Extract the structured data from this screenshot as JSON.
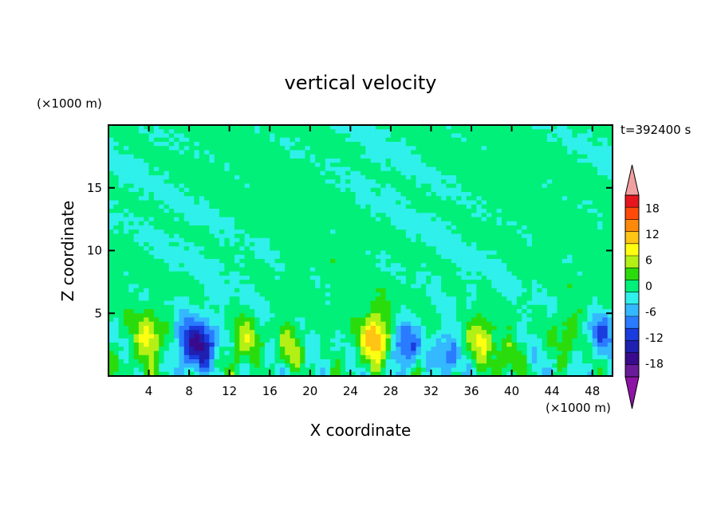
{
  "chart_data": {
    "type": "heatmap",
    "title": "vertical velocity",
    "xlabel": "X coordinate",
    "ylabel": "Z coordinate",
    "x_unit": "(×1000 m)",
    "z_unit": "(×1000 m)",
    "time_label": "t=392400 s",
    "xlim": [
      0,
      50
    ],
    "ylim": [
      0,
      20
    ],
    "x_ticks": [
      4,
      8,
      12,
      16,
      20,
      24,
      28,
      32,
      36,
      40,
      44,
      48
    ],
    "y_ticks": [
      5,
      10,
      15
    ],
    "colorbar": {
      "levels": [
        -21,
        -18,
        -15,
        -12,
        -9,
        -6,
        -3,
        0,
        3,
        6,
        9,
        12,
        15,
        18,
        21
      ],
      "tick_labels": [
        18,
        12,
        6,
        0,
        -6,
        -12,
        -18
      ],
      "extend": "both",
      "colors": [
        "#6a1b9a",
        "#3a0a8c",
        "#1f1fb0",
        "#1a3cde",
        "#2a7bff",
        "#34b8ff",
        "#2ff0ea",
        "#00f07a",
        "#2bdc0d",
        "#b4f016",
        "#ffff12",
        "#ffc414",
        "#ff8a0a",
        "#ff4a0a",
        "#e6151e"
      ],
      "over_color": "#f0a0a0",
      "under_color": "#8e14a5"
    },
    "updraft_cores": [
      {
        "x": 4.0,
        "z": 3.0,
        "w": 9
      },
      {
        "x": 13.5,
        "z": 2.7,
        "w": 8
      },
      {
        "x": 18.0,
        "z": 2.5,
        "w": 7
      },
      {
        "x": 26.5,
        "z": 3.0,
        "w": 14
      },
      {
        "x": 37.0,
        "z": 3.2,
        "w": 9
      },
      {
        "x": 39.5,
        "z": 1.5,
        "w": 6
      },
      {
        "x": 45.5,
        "z": 3.5,
        "w": 5
      }
    ],
    "downdraft_cores": [
      {
        "x": 7.8,
        "z": 2.5,
        "w": -12
      },
      {
        "x": 9.5,
        "z": 2.3,
        "w": -13
      },
      {
        "x": 29.5,
        "z": 2.3,
        "w": -12
      },
      {
        "x": 33.5,
        "z": 1.6,
        "w": -9
      },
      {
        "x": 49.0,
        "z": 3.5,
        "w": -9
      }
    ]
  }
}
